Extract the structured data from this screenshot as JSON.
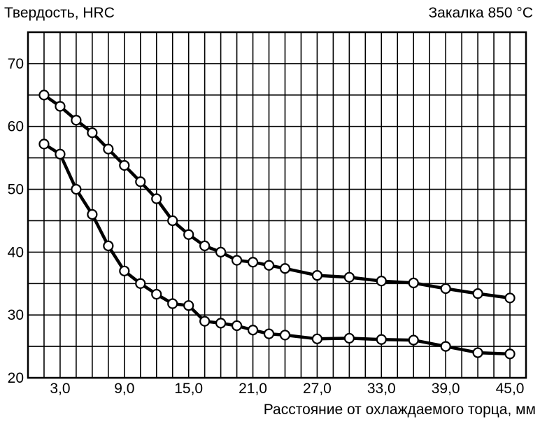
{
  "chart_data": {
    "type": "line",
    "title_left": "Твердость, HRC",
    "title_right": "Закалка 850 °C",
    "xlabel": "Расстояние от охлаждаемого торца, мм",
    "xlim": [
      0,
      46.5
    ],
    "ylim": [
      20,
      75
    ],
    "x_ticks": [
      {
        "value": 3,
        "label": "3,0"
      },
      {
        "value": 9,
        "label": "9,0"
      },
      {
        "value": 15,
        "label": "15,0"
      },
      {
        "value": 21,
        "label": "21,0"
      },
      {
        "value": 27,
        "label": "27,0"
      },
      {
        "value": 33,
        "label": "33,0"
      },
      {
        "value": 39,
        "label": "39,0"
      },
      {
        "value": 45,
        "label": "45,0"
      }
    ],
    "y_ticks": [
      {
        "value": 20,
        "label": "20"
      },
      {
        "value": 30,
        "label": "30"
      },
      {
        "value": 40,
        "label": "40"
      },
      {
        "value": 50,
        "label": "50"
      },
      {
        "value": 60,
        "label": "60"
      },
      {
        "value": 70,
        "label": "70"
      }
    ],
    "grid": true,
    "series": [
      {
        "x": [
          1.5,
          3,
          4.5,
          6,
          7.5,
          9,
          10.5,
          12,
          13.5,
          15,
          16.5,
          18,
          19.5,
          21,
          22.5,
          24,
          27,
          30,
          33,
          36,
          39,
          42,
          45
        ],
        "values": [
          65,
          63.2,
          61,
          59,
          56.4,
          53.8,
          51.2,
          48.5,
          45,
          42.8,
          41,
          40,
          38.7,
          38.4,
          37.9,
          37.4,
          36.3,
          36,
          35.4,
          35.1,
          34.2,
          33.4,
          32.7
        ]
      },
      {
        "x": [
          1.5,
          3,
          4.5,
          6,
          7.5,
          9,
          10.5,
          12,
          13.5,
          15,
          16.5,
          18,
          19.5,
          21,
          22.5,
          24,
          27,
          30,
          33,
          36,
          39,
          42,
          45
        ],
        "values": [
          57.2,
          55.6,
          50,
          46,
          41,
          37,
          35,
          33.3,
          31.8,
          31.5,
          29,
          28.7,
          28.3,
          27.6,
          27,
          26.8,
          26.2,
          26.3,
          26.1,
          26,
          25,
          24,
          23.8
        ]
      }
    ]
  }
}
